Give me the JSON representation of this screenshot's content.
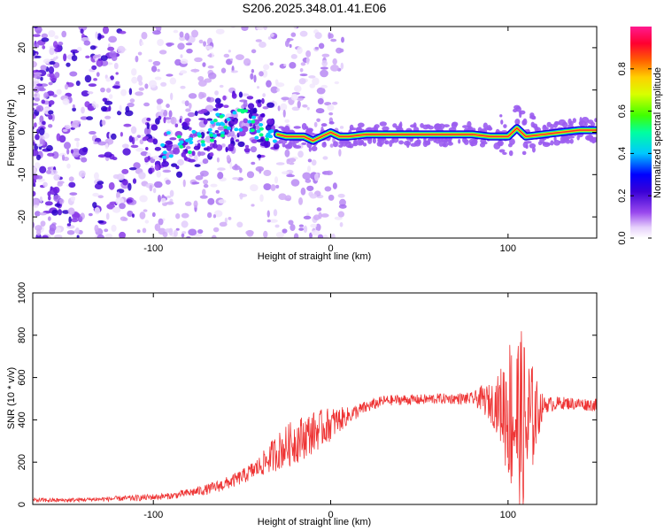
{
  "title": "S206.2025.348.01.41.E06",
  "chart_data": [
    {
      "type": "heatmap",
      "title": "S206.2025.348.01.41.E06",
      "xlabel": "Height of straight line (km)",
      "ylabel": "Frequency (Hz)",
      "xlim": [
        -168,
        150
      ],
      "ylim": [
        -25,
        25
      ],
      "xticks": [
        -100,
        0,
        100
      ],
      "yticks": [
        -20,
        -10,
        0,
        10,
        20
      ],
      "xtick_labels": [
        "-100",
        "0",
        "100"
      ],
      "ytick_labels": [
        "-20",
        "-10",
        "0",
        "10",
        "20"
      ],
      "ridge_x": [
        -100,
        -85,
        -75,
        -65,
        -55,
        -45,
        -35,
        -25,
        -15,
        -10,
        -5,
        0,
        5,
        10,
        20,
        40,
        60,
        80,
        90,
        100,
        105,
        110,
        120,
        130,
        140,
        150
      ],
      "ridge_y": [
        -3,
        -3,
        -1,
        1,
        3,
        2,
        0,
        -1,
        -1,
        -2,
        -1,
        0,
        -1,
        -1,
        -0.5,
        -0.5,
        -0.5,
        -0.5,
        -1,
        -1,
        1,
        -1,
        -0.5,
        0,
        0.5,
        0.5
      ],
      "colorbar": {
        "label": "Normalized spectral amplitude",
        "range": [
          0,
          1
        ],
        "ticks": [
          0.0,
          0.2,
          0.4,
          0.6,
          0.8
        ],
        "tick_labels": [
          "0.0",
          "0.2",
          "0.4",
          "0.6",
          "0.8"
        ],
        "colormap": [
          "#ffffff",
          "#e8d6fb",
          "#b070ee",
          "#7a14e6",
          "#3a00d6",
          "#0000ff",
          "#00cfff",
          "#00ff60",
          "#b8ff00",
          "#ffe000",
          "#ff7800",
          "#ff0040",
          "#ff1493"
        ]
      }
    },
    {
      "type": "line",
      "title": "",
      "xlabel": "Height of straight line (km)",
      "ylabel": "SNR (10 * v/v)",
      "xlim": [
        -168,
        150
      ],
      "ylim": [
        0,
        1000
      ],
      "xticks": [
        -100,
        0,
        100
      ],
      "yticks": [
        0,
        200,
        400,
        600,
        800,
        1000
      ],
      "xtick_labels": [
        "-100",
        "0",
        "100"
      ],
      "ytick_labels": [
        "0",
        "200",
        "400",
        "600",
        "800",
        "1000"
      ],
      "series": [
        {
          "name": "SNR",
          "color": "#ee3333",
          "x": [
            -168,
            -150,
            -130,
            -110,
            -100,
            -90,
            -80,
            -70,
            -60,
            -50,
            -40,
            -30,
            -20,
            -10,
            0,
            10,
            20,
            30,
            40,
            50,
            60,
            70,
            80,
            85,
            90,
            95,
            100,
            105,
            110,
            115,
            120,
            130,
            140,
            150
          ],
          "y": [
            20,
            20,
            25,
            30,
            35,
            40,
            55,
            70,
            95,
            130,
            180,
            250,
            300,
            340,
            380,
            420,
            460,
            490,
            495,
            495,
            500,
            500,
            500,
            500,
            480,
            470,
            450,
            400,
            350,
            420,
            470,
            480,
            475,
            470
          ],
          "noise": [
            10,
            10,
            10,
            15,
            15,
            15,
            20,
            25,
            30,
            35,
            50,
            90,
            110,
            100,
            80,
            40,
            30,
            25,
            25,
            25,
            25,
            25,
            30,
            60,
            90,
            150,
            350,
            450,
            450,
            200,
            40,
            30,
            30,
            30
          ]
        }
      ]
    }
  ],
  "colors": {
    "axis": "#000000",
    "line": "#ee3333"
  }
}
